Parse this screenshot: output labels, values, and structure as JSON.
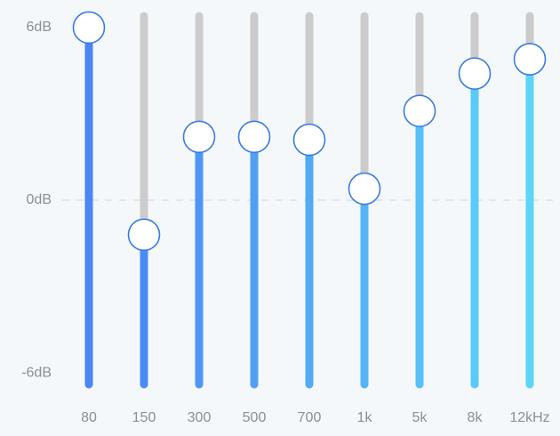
{
  "chart_data": {
    "type": "equalizer",
    "categories": [
      "80",
      "150",
      "300",
      "500",
      "700",
      "1k",
      "5k",
      "8k",
      "12kHz"
    ],
    "values": [
      6.0,
      -1.2,
      2.2,
      2.2,
      2.1,
      0.4,
      3.1,
      4.4,
      4.9
    ],
    "colors": [
      "#4a86f5",
      "#4b8bf5",
      "#4e96f5",
      "#509ff5",
      "#53a9f5",
      "#55b4f6",
      "#57c0f6",
      "#59cbf6",
      "#5bd6f6"
    ],
    "track_color": "#cccccc",
    "knob_stroke": "#3a7be0",
    "ylim": [
      -6.4,
      6.4
    ],
    "yticks": [
      {
        "value": 6,
        "label": "6dB"
      },
      {
        "value": 0,
        "label": "0dB"
      },
      {
        "value": -6,
        "label": "-6dB"
      }
    ],
    "zero_line": true
  }
}
